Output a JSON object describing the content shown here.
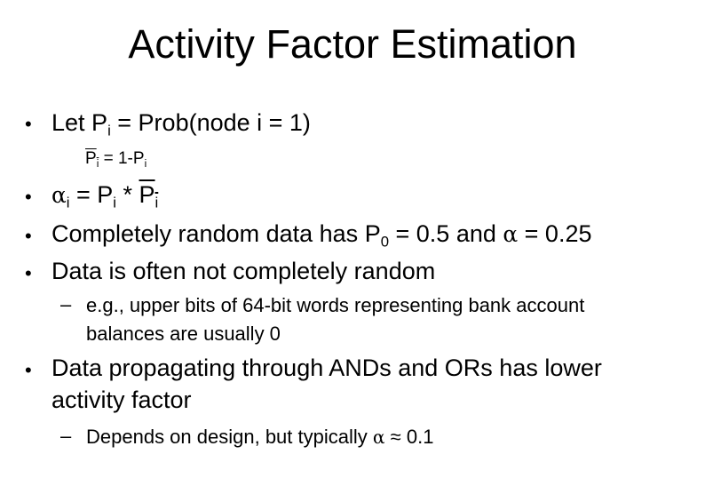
{
  "slide": {
    "title": "Activity Factor Estimation",
    "bullet_glyph": "•",
    "dash_glyph": "–",
    "b1": {
      "let": "Let ",
      "P": "P",
      "sub_i": "i",
      "rest": " = Prob(node i = 1)"
    },
    "b1_sub": {
      "P": "P",
      "sub_i": "i",
      "eq": " = 1-",
      "P2": "P",
      "sub_i2": "i"
    },
    "b2": {
      "alpha": "α",
      "sub_i": "i",
      "eq": " = ",
      "P": "P",
      "sub_i2": "i",
      "mul": " * ",
      "Pbar": "P",
      "sub_i3": "i"
    },
    "b3": {
      "text1": "Completely random data has P",
      "sub_0": "0",
      "text2": " = 0.5 and ",
      "alpha": "α",
      "text3": " = 0.25"
    },
    "b4": "Data is often not completely random",
    "b4_sub_line1": "e.g., upper bits of 64-bit words representing bank account",
    "b4_sub_line2": "balances are usually 0",
    "b5_line1": "Data propagating through ANDs and ORs has lower",
    "b5_line2": "activity factor",
    "b5_sub": {
      "text1": "Depends on design, but typically ",
      "alpha": "α",
      "approx": " ≈ 0.1"
    }
  }
}
